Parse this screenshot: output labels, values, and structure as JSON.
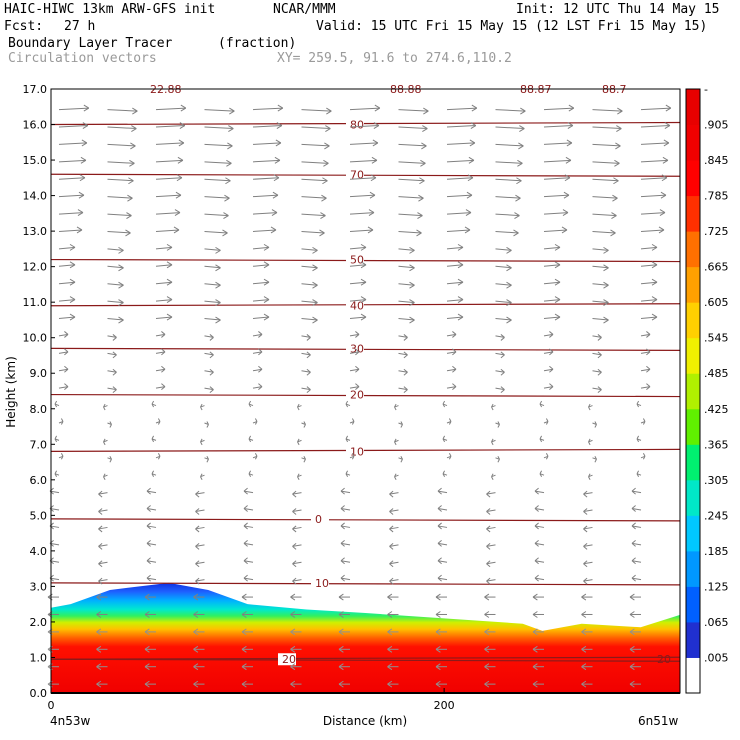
{
  "header": {
    "model": "HAIC-HIWC 13km ARW-GFS init",
    "org": "NCAR/MMM",
    "init": "Init: 12 UTC Thu 14 May 15",
    "fcst_label": "Fcst:",
    "fcst_value": "27 h",
    "valid": "Valid: 15 UTC Fri 15 May 15 (12 LST Fri 15 May 15)",
    "field_name": "Boundary Layer Tracer",
    "field_units": "(fraction)",
    "overlay": "Circulation vectors",
    "xy": "XY= 259.5, 91.6 to 274.6,110.2"
  },
  "chart_data": {
    "type": "heatmap",
    "ylabel": "Height (km)",
    "xlabel": "Distance (km)",
    "x_left_label": "4n53w",
    "x_right_label": "6n51w",
    "xlim": [
      0,
      320
    ],
    "ylim": [
      0,
      17
    ],
    "x_ticks": [
      "0",
      "200"
    ],
    "x_tick_values": [
      0,
      200
    ],
    "y_ticks": [
      "0.0",
      "1.0",
      "2.0",
      "3.0",
      "4.0",
      "5.0",
      "6.0",
      "7.0",
      "8.0",
      "9.0",
      "10.0",
      "11.0",
      "12.0",
      "13.0",
      "14.0",
      "15.0",
      "16.0",
      "17.0"
    ],
    "colorbar": {
      "labels": [
        ".005",
        ".065",
        ".125",
        ".185",
        ".245",
        ".305",
        ".365",
        ".425",
        ".485",
        ".545",
        ".605",
        ".665",
        ".725",
        ".785",
        ".845",
        ".905",
        "-"
      ],
      "colors": [
        "#ffffff",
        "#2030d0",
        "#0060ff",
        "#0098ff",
        "#00c8ff",
        "#00e8c8",
        "#00f070",
        "#60f000",
        "#b0f000",
        "#f0f000",
        "#ffd000",
        "#ffa000",
        "#ff7000",
        "#ff3000",
        "#ff0000",
        "#f00000",
        "#e80000"
      ]
    },
    "contours": [
      {
        "label": "80",
        "height_km": 16.0
      },
      {
        "label": "70",
        "height_km": 14.6
      },
      {
        "label": "50",
        "height_km": 12.2
      },
      {
        "label": "40",
        "height_km": 10.9
      },
      {
        "label": "30",
        "height_km": 9.7
      },
      {
        "label": "20",
        "height_km": 8.4
      },
      {
        "label": "10",
        "height_km": 6.8
      },
      {
        "label": "0",
        "height_km": 4.9
      },
      {
        "label": "10",
        "height_km": 3.1
      },
      {
        "label": "20",
        "height_km": 0.95
      },
      {
        "label": "20",
        "height_km": 0.95
      }
    ],
    "top_contour_labels": [
      "22.88",
      "88.88",
      "88.87",
      "88.7"
    ],
    "boundary_layer_top_km": [
      [
        0,
        2.4
      ],
      [
        10,
        2.5
      ],
      [
        30,
        2.9
      ],
      [
        60,
        3.1
      ],
      [
        80,
        2.9
      ],
      [
        100,
        2.5
      ],
      [
        130,
        2.35
      ],
      [
        160,
        2.25
      ],
      [
        200,
        2.1
      ],
      [
        240,
        1.95
      ],
      [
        250,
        1.75
      ],
      [
        270,
        1.95
      ],
      [
        300,
        1.85
      ],
      [
        320,
        2.2
      ]
    ]
  }
}
